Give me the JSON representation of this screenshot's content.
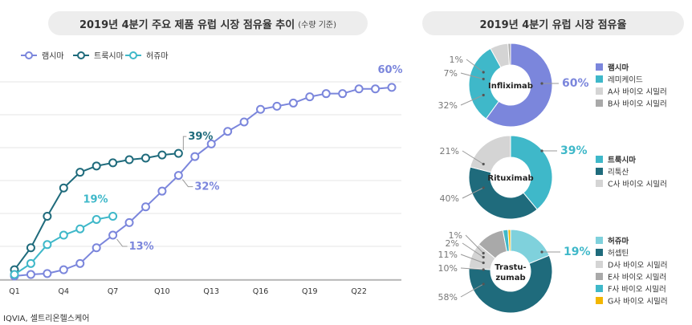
{
  "left_title": {
    "main": "2019년 4분기 주요 제품 유럽 시장 점유율 추이",
    "sub": "(수량 기준)"
  },
  "right_title": "2019년 4분기  유럽 시장 점유율",
  "source": "IQVIA, 셀트리온헬스케어",
  "colors": {
    "remsima": "#7b86dc",
    "truxima": "#1f6b7c",
    "herzuma": "#3fb8c9",
    "lightgray": "#d4d4d4",
    "midgray": "#a9a9a9",
    "yellow": "#f2b600",
    "grid": "#e4e4e4"
  },
  "chart_data": [
    {
      "type": "line",
      "title": "2019년 4분기 주요 제품 유럽 시장 점유율 추이 (수량 기준)",
      "x_ticks": [
        "Q1",
        "Q4",
        "Q7",
        "Q10",
        "Q13",
        "Q16",
        "Q19",
        "Q22"
      ],
      "tick_positions": [
        1,
        4,
        7,
        10,
        13,
        16,
        19,
        22
      ],
      "xlim": [
        1,
        24
      ],
      "ylim": [
        0,
        62
      ],
      "series": [
        {
          "name": "램시마",
          "color_key": "remsima",
          "x": [
            1,
            2,
            3,
            4,
            5,
            6,
            7,
            8,
            9,
            10,
            11,
            12,
            13,
            14,
            15,
            16,
            17,
            18,
            19,
            20,
            21,
            22,
            23,
            24
          ],
          "values": [
            0,
            0.5,
            0.8,
            2,
            4,
            9,
            13,
            17,
            22,
            27,
            32,
            38,
            42,
            46,
            49,
            53,
            54,
            55,
            57,
            58,
            58,
            59.5,
            59.5,
            60
          ],
          "end_label": "60%",
          "label_at": [
            24,
            60
          ]
        },
        {
          "name": "트룩시마",
          "color_key": "truxima",
          "x": [
            1,
            2,
            3,
            4,
            5,
            6,
            7,
            8,
            9,
            10,
            11
          ],
          "values": [
            2,
            9,
            19,
            28,
            33,
            35,
            36,
            37,
            37.5,
            38.5,
            39
          ],
          "end_label": "39%",
          "label_at": [
            11,
            39
          ]
        },
        {
          "name": "허쥬마",
          "color_key": "herzuma",
          "x": [
            1,
            2,
            3,
            4,
            5,
            6,
            7
          ],
          "values": [
            0.5,
            4,
            10,
            13,
            15,
            18,
            19
          ],
          "end_label": "19%",
          "label_at": [
            7,
            19
          ]
        }
      ],
      "annotations": [
        {
          "text": "32%",
          "x": 11,
          "y": 32,
          "color_key": "remsima"
        },
        {
          "text": "13%",
          "x": 7,
          "y": 13,
          "color_key": "remsima"
        }
      ],
      "legend": [
        "램시마",
        "트룩시마",
        "허쥬마"
      ]
    },
    {
      "type": "pie",
      "center_label": "Infliximab",
      "slices": [
        {
          "label": "램시마",
          "value": 60,
          "color_key": "remsima",
          "bold": true
        },
        {
          "label": "레미케이드",
          "value": 32,
          "color_key": "herzuma"
        },
        {
          "label": "A사 바이오 시밀러",
          "value": 7,
          "color_key": "lightgray"
        },
        {
          "label": "B사 바이오 시밀러",
          "value": 1,
          "color_key": "midgray"
        }
      ],
      "value_labels": [
        "60%",
        "32%",
        "7%",
        "1%"
      ]
    },
    {
      "type": "pie",
      "center_label": "Rituximab",
      "slices": [
        {
          "label": "트룩시마",
          "value": 39,
          "color_key": "herzuma",
          "bold": true
        },
        {
          "label": "리툭산",
          "value": 40,
          "color_key": "truxima"
        },
        {
          "label": "C사 바이오 시밀러",
          "value": 21,
          "color_key": "lightgray"
        }
      ],
      "value_labels": [
        "39%",
        "40%",
        "21%"
      ]
    },
    {
      "type": "pie",
      "center_label": [
        "Trastu-",
        "zumab"
      ],
      "slices": [
        {
          "label": "허쥬마",
          "value": 19,
          "color_key": "herzuma_light",
          "bold": true
        },
        {
          "label": "허셉틴",
          "value": 58,
          "color_key": "truxima"
        },
        {
          "label": "D사 바이오 시밀러",
          "value": 10,
          "color_key": "lightgray"
        },
        {
          "label": "E사 바이오 시밀러",
          "value": 11,
          "color_key": "midgray"
        },
        {
          "label": "F사 바이오 시밀러",
          "value": 2,
          "color_key": "herzuma"
        },
        {
          "label": "G사 바이오 시밀러",
          "value": 1,
          "color_key": "yellow"
        }
      ],
      "value_labels": [
        "19%",
        "58%",
        "10%",
        "11%",
        "2%",
        "1%"
      ]
    }
  ]
}
